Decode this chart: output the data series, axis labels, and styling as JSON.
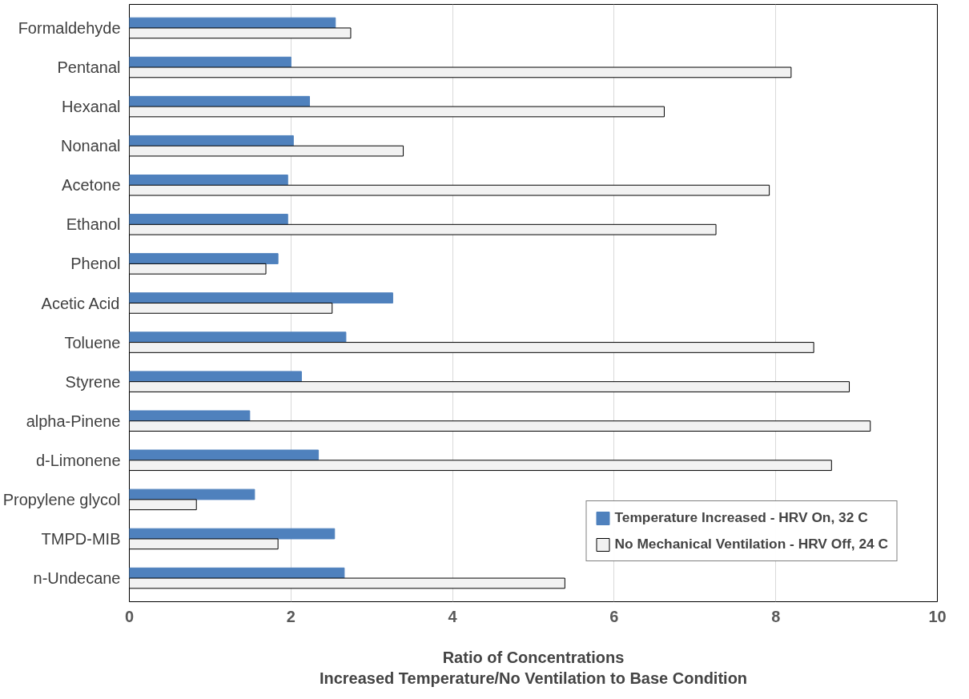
{
  "chart_data": {
    "type": "bar",
    "orientation": "horizontal",
    "xlabel": "Ratio of Concentrations\nIncreased Temperature/No Ventilation to Base Condition",
    "categories": [
      "Formaldehyde",
      "Pentanal",
      "Hexanal",
      "Nonanal",
      "Acetone",
      "Ethanol",
      "Phenol",
      "Acetic Acid",
      "Toluene",
      "Styrene",
      "alpha-Pinene",
      "d-Limonene",
      "Propylene glycol",
      "TMPD-MIB",
      "n-Undecane"
    ],
    "series": [
      {
        "name": "Temperature Increased - HRV On, 32 C",
        "color": "#4f81bd",
        "values": [
          2.55,
          2.0,
          2.23,
          2.03,
          1.96,
          1.96,
          1.84,
          3.26,
          2.68,
          2.13,
          1.49,
          2.34,
          1.55,
          2.54,
          2.66
        ]
      },
      {
        "name": "No Mechanical Ventilation - HRV Off, 24 C",
        "color": "#f2f2f2",
        "values": [
          2.74,
          8.19,
          6.62,
          3.39,
          7.92,
          7.26,
          1.69,
          2.51,
          8.47,
          8.91,
          9.17,
          8.69,
          0.83,
          1.84,
          5.39
        ]
      }
    ],
    "xlim": [
      0,
      10
    ],
    "xticks": [
      0,
      2,
      4,
      6,
      8,
      10
    ],
    "grid": "x",
    "legend": "bottom right"
  }
}
